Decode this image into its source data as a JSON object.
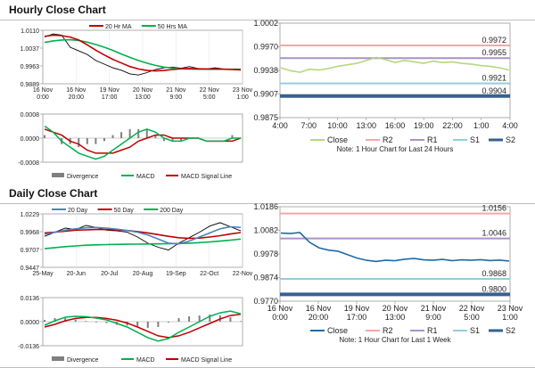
{
  "hourly": {
    "title": "Hourly Close Chart",
    "price_panel": {
      "legend": [
        "20 Hr MA",
        "50 Hrs MA"
      ],
      "y_ticks": [
        "1.0110",
        "1.0037",
        "0.9963",
        "0.9889"
      ],
      "x_ticks": [
        "16 Nov\n0:00",
        "16 Nov\n20:00",
        "19 Nov\n17:00",
        "20 Nov\n13:00",
        "21 Nov\n9:00",
        "22 Nov\n5:00",
        "23 Nov\n1:00"
      ]
    },
    "macd_panel": {
      "y_ticks": [
        "0.0008",
        "0.0000",
        "-0.0008"
      ],
      "legend": [
        "Divergence",
        "MACD",
        "MACD Signal Line"
      ]
    },
    "levels_panel": {
      "y_ticks": [
        "1.0002",
        "0.9970",
        "0.9938",
        "0.9907",
        "0.9875"
      ],
      "x_ticks": [
        "4:00",
        "7:00",
        "10:00",
        "13:00",
        "16:00",
        "19:00",
        "22:00",
        "1:00",
        "4:00"
      ],
      "level_labels": [
        "0.9972",
        "0.9955",
        "0.9921",
        "0.9904"
      ],
      "legend": [
        "Close",
        "R2",
        "R1",
        "S1",
        "S2"
      ],
      "note": "Note: 1 Hour Chart for Last 24 Hours"
    }
  },
  "daily": {
    "title": "Daily Close Chart",
    "price_panel": {
      "legend": [
        "20 Day",
        "50 Day",
        "200 Day"
      ],
      "y_ticks": [
        "1.0229",
        "0.9968",
        "0.9707",
        "0.9447"
      ],
      "x_ticks": [
        "25-May",
        "20-Jun",
        "20-Jul",
        "20-Aug",
        "19-Sep",
        "22-Oct",
        "22-Nov"
      ]
    },
    "macd_panel": {
      "y_ticks": [
        "0.0136",
        "0.0000",
        "-0.0136"
      ],
      "legend": [
        "Divergence",
        "MACD",
        "MACD Signal Line"
      ]
    },
    "levels_panel": {
      "y_ticks": [
        "1.0186",
        "1.0082",
        "0.9978",
        "0.9874",
        "0.9770"
      ],
      "x_ticks": [
        "16 Nov\n0:00",
        "16 Nov\n20:00",
        "19 Nov\n17:00",
        "20 Nov\n13:00",
        "21 Nov\n9:00",
        "22 Nov\n5:00",
        "23 Nov\n1:00"
      ],
      "level_labels": [
        "1.0156",
        "1.0046",
        "0.9868",
        "0.9800"
      ],
      "legend": [
        "Close",
        "R2",
        "R1",
        "S1",
        "S2"
      ],
      "note": "Note: 1 Hour Chart for Last 1 Week"
    }
  },
  "colors": {
    "ma_short": "#c00000",
    "ma_long": "#00b050",
    "ma_mid": "#4f81bd",
    "close": "#000000",
    "macd": "#00b050",
    "signal": "#c00000",
    "divergence": "#7f7f7f",
    "levels_close_hourly": "#b5d77d",
    "levels_close_daily": "#1f6aa5",
    "r2": "#f4a7a7",
    "r1": "#a893c6",
    "s1": "#92cddc",
    "s2": "#366092"
  },
  "chart_data": [
    {
      "type": "line",
      "id": "hourly-price",
      "ylim": [
        0.9889,
        1.011
      ],
      "series": [
        {
          "name": "20 Hr MA",
          "values": [
            1.0085,
            1.009,
            1.0088,
            1.0082,
            1.007,
            1.005,
            1.0028,
            1.0008,
            0.999,
            0.9975,
            0.996,
            0.995,
            0.9944,
            0.9942,
            0.9944,
            0.9948,
            0.9951,
            0.9952,
            0.9951,
            0.995,
            0.995,
            0.9949,
            0.9948,
            0.9947
          ]
        },
        {
          "name": "50 Hrs MA",
          "values": [
            1.006,
            1.0066,
            1.007,
            1.0071,
            1.0068,
            1.0061,
            1.0051,
            1.004,
            1.0027,
            1.0012,
            0.9998,
            0.9985,
            0.9974,
            0.9965,
            0.9958,
            0.9954,
            0.9951,
            0.995,
            0.9949,
            0.9949,
            0.9949,
            0.9949,
            0.9949,
            0.9949
          ]
        },
        {
          "name": "Close",
          "values": [
            1.0082,
            1.0095,
            1.009,
            1.004,
            1.0025,
            1.001,
            0.9985,
            0.997,
            0.9955,
            0.9945,
            0.993,
            0.9925,
            0.9935,
            0.9948,
            0.9955,
            0.9958,
            0.9953,
            0.996,
            0.9952,
            0.995,
            0.9955,
            0.995,
            0.9948,
            0.9945
          ]
        }
      ]
    },
    {
      "type": "line",
      "id": "hourly-macd",
      "ylim": [
        -0.0008,
        0.0008
      ],
      "series": [
        {
          "name": "MACD",
          "values": [
            0.0004,
            0.0002,
            -0.0001,
            -0.0003,
            -0.0005,
            -0.0006,
            -0.0007,
            -0.0006,
            -0.0004,
            -0.0002,
            0.0,
            0.0002,
            0.0003,
            0.0002,
            0.0,
            -0.0001,
            -0.0001,
            0.0,
            0.0,
            -0.0001,
            -0.0001,
            -0.0001,
            0.0,
            0.0
          ]
        },
        {
          "name": "MACD Signal Line",
          "values": [
            0.0003,
            0.0002,
            0.0001,
            -0.0001,
            -0.0002,
            -0.0004,
            -0.0005,
            -0.0005,
            -0.0005,
            -0.0004,
            -0.0003,
            -0.0001,
            0.0,
            0.0001,
            0.0001,
            0.0,
            0.0,
            0.0,
            0.0,
            -0.0001,
            -0.0001,
            -0.0001,
            -0.0001,
            0.0
          ]
        },
        {
          "name": "Divergence",
          "values": [
            0.0001,
            0.0,
            -0.0002,
            -0.0002,
            -0.0003,
            -0.0002,
            -0.0002,
            -0.0001,
            0.0001,
            0.0002,
            0.0003,
            0.0003,
            0.0003,
            0.0001,
            -0.0001,
            -0.0001,
            -0.0001,
            0.0,
            0.0,
            0.0,
            0.0,
            0.0,
            0.0001,
            0.0
          ]
        }
      ]
    },
    {
      "type": "line",
      "id": "hourly-levels",
      "ylim": [
        0.9875,
        1.0002
      ],
      "series": [
        {
          "name": "Close",
          "values": [
            0.9942,
            0.9938,
            0.9936,
            0.994,
            0.9939,
            0.9941,
            0.9944,
            0.9946,
            0.9948,
            0.9952,
            0.9956,
            0.9953,
            0.9949,
            0.9952,
            0.995,
            0.9948,
            0.9951,
            0.9949,
            0.995,
            0.9948,
            0.9947,
            0.9945,
            0.9944,
            0.9942,
            0.9939
          ]
        },
        {
          "name": "R2",
          "value": 0.9972
        },
        {
          "name": "R1",
          "value": 0.9955
        },
        {
          "name": "S1",
          "value": 0.9921
        },
        {
          "name": "S2",
          "value": 0.9904
        }
      ]
    },
    {
      "type": "line",
      "id": "daily-price",
      "ylim": [
        0.9447,
        1.0229
      ],
      "series": [
        {
          "name": "20 Day",
          "values": [
            0.993,
            0.996,
            0.999,
            1.001,
            1.0025,
            1.003,
            1.002,
            1.0005,
            0.9985,
            0.996,
            0.992,
            0.986,
            0.98,
            0.979,
            0.983,
            0.989,
            0.995,
            1.001,
            1.004,
            1.003
          ]
        },
        {
          "name": "50 Day",
          "values": [
            0.995,
            0.996,
            0.9975,
            0.999,
            0.9995,
            1.0,
            1.0,
            0.9995,
            0.9985,
            0.997,
            0.995,
            0.9925,
            0.99,
            0.988,
            0.987,
            0.9875,
            0.989,
            0.991,
            0.9935,
            0.9955
          ]
        },
        {
          "name": "200 Day",
          "values": [
            0.972,
            0.9735,
            0.975,
            0.976,
            0.977,
            0.9775,
            0.978,
            0.9782,
            0.9784,
            0.9786,
            0.9788,
            0.979,
            0.9792,
            0.9795,
            0.98,
            0.9808,
            0.9818,
            0.983,
            0.9845,
            0.986
          ]
        },
        {
          "name": "Close",
          "values": [
            0.99,
            0.996,
            1.002,
            1.0,
            1.006,
            1.003,
            0.999,
            0.998,
            0.996,
            0.989,
            0.98,
            0.974,
            0.97,
            0.98,
            0.988,
            0.996,
            1.005,
            1.01,
            1.004,
            0.998
          ]
        }
      ]
    },
    {
      "type": "line",
      "id": "daily-macd",
      "ylim": [
        -0.0136,
        0.0136
      ],
      "series": [
        {
          "name": "MACD",
          "values": [
            -0.002,
            0.0005,
            0.0025,
            0.003,
            0.0028,
            0.002,
            0.001,
            -0.001,
            -0.003,
            -0.006,
            -0.009,
            -0.011,
            -0.0095,
            -0.006,
            -0.003,
            0.0,
            0.003,
            0.005,
            0.006,
            0.0045
          ]
        },
        {
          "name": "MACD Signal Line",
          "values": [
            -0.003,
            -0.0015,
            0.0005,
            0.0018,
            0.0024,
            0.0024,
            0.0018,
            0.0008,
            -0.0008,
            -0.003,
            -0.0055,
            -0.008,
            -0.009,
            -0.008,
            -0.006,
            -0.0035,
            -0.001,
            0.0015,
            0.0035,
            0.0042
          ]
        },
        {
          "name": "Divergence",
          "values": [
            0.001,
            0.002,
            0.002,
            0.0012,
            0.0004,
            -0.0004,
            -0.0008,
            -0.0018,
            -0.0022,
            -0.003,
            -0.0035,
            -0.003,
            -0.0005,
            0.002,
            0.003,
            0.0035,
            0.004,
            0.0035,
            0.0025,
            0.0003
          ]
        }
      ]
    },
    {
      "type": "line",
      "id": "daily-levels",
      "ylim": [
        0.977,
        1.0186
      ],
      "series": [
        {
          "name": "Close",
          "values": [
            1.007,
            1.0068,
            1.0072,
            1.003,
            1.0005,
            0.9995,
            0.999,
            0.9975,
            0.996,
            0.995,
            0.9945,
            0.995,
            0.9948,
            0.9955,
            0.9958,
            0.9952,
            0.995,
            0.9954,
            0.9948,
            0.9952,
            0.995,
            0.9953,
            0.9949,
            0.9951,
            0.9947
          ]
        },
        {
          "name": "R2",
          "value": 1.0156
        },
        {
          "name": "R1",
          "value": 1.0046
        },
        {
          "name": "S1",
          "value": 0.9868
        },
        {
          "name": "S2",
          "value": 0.98
        }
      ]
    }
  ]
}
